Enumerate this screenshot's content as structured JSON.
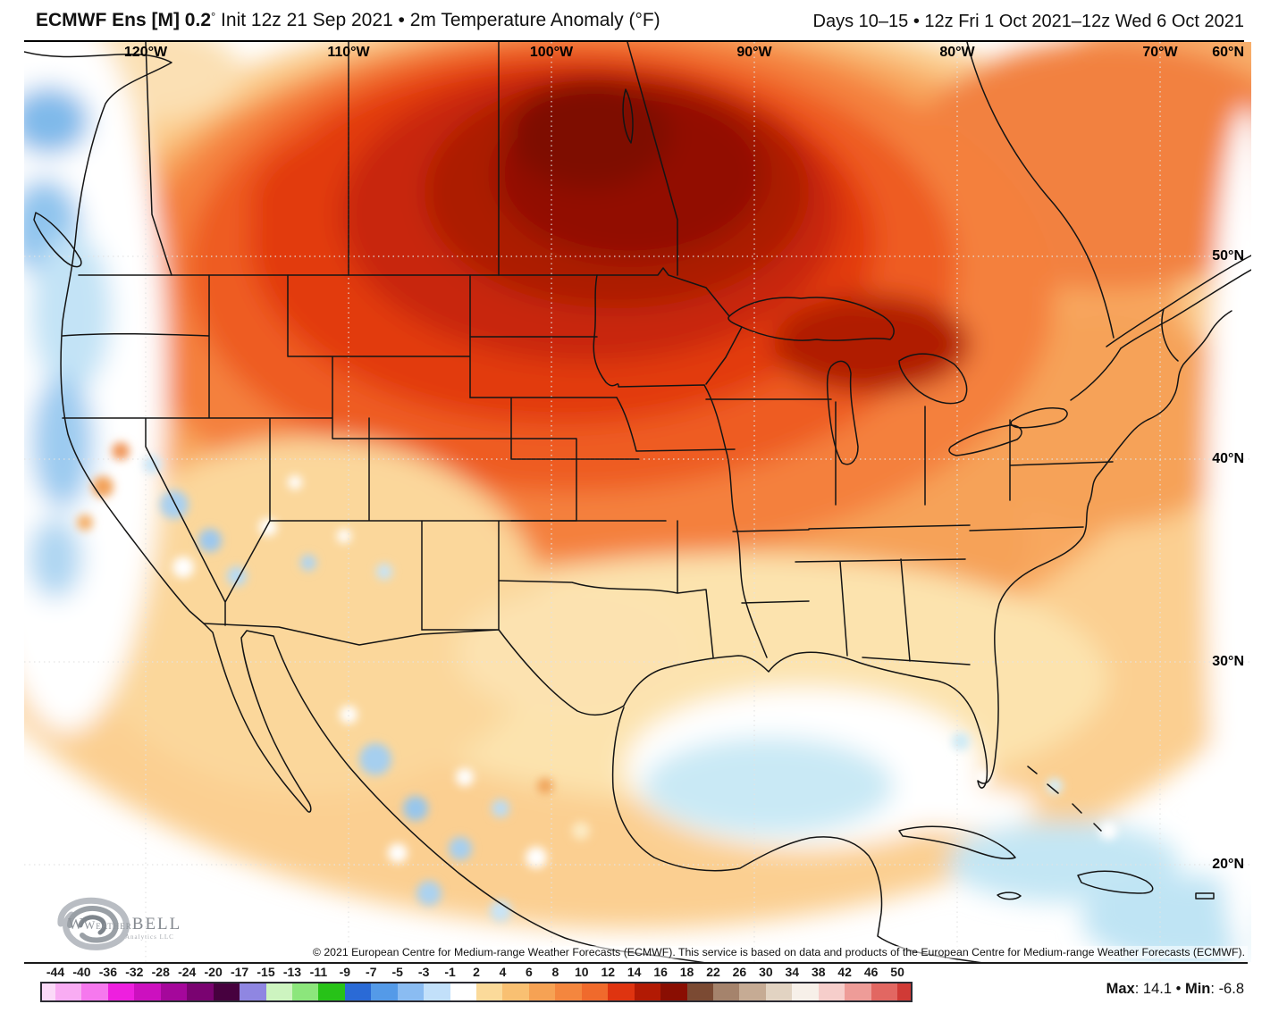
{
  "header": {
    "title_model": "ECMWF Ens [M] 0.2",
    "title_degree": "°",
    "title_desc": " Init 12z 21 Sep 2021 • 2m Temperature Anomaly (°F)",
    "valid_range": "Days 10–15 • 12z Fri 1 Oct 2021–12z Wed 6 Oct 2021"
  },
  "map": {
    "longitude_labels": [
      "120°W",
      "110°W",
      "100°W",
      "90°W",
      "80°W",
      "70°W"
    ],
    "latitude_labels": [
      "60°N",
      "50°N",
      "40°N",
      "30°N",
      "20°N"
    ],
    "copyright": "© 2021 European Centre for Medium-range Weather Forecasts (ECMWF). This service is based on data and products of the European Centre for Medium-range Weather Forecasts (ECMWF).",
    "logo": {
      "name_weather": "Weather",
      "name_bell": "BELL",
      "tagline": "Analytics LLC"
    }
  },
  "colorbar": {
    "tick_labels": [
      "-44",
      "-40",
      "-36",
      "-32",
      "-28",
      "-24",
      "-20",
      "-17",
      "-15",
      "-13",
      "-11",
      "-9",
      "-7",
      "-5",
      "-3",
      "-1",
      "2",
      "4",
      "6",
      "8",
      "10",
      "12",
      "14",
      "16",
      "18",
      "22",
      "26",
      "30",
      "34",
      "38",
      "42",
      "46",
      "50"
    ],
    "segment_colors": [
      "#FBD9F8",
      "#F9ACF3",
      "#F678EE",
      "#EE1FDF",
      "#CC10BF",
      "#A5079B",
      "#7A0371",
      "#47013F",
      "#8F86E2",
      "#CDF4C0",
      "#8CE67C",
      "#27C218",
      "#2A6AD6",
      "#549AE8",
      "#8ABCF2",
      "#C2E0FA",
      "#FFFFFF",
      "#FBDA9A",
      "#F9C072",
      "#F6A254",
      "#F4863E",
      "#F06A2C",
      "#DF3410",
      "#B21A04",
      "#8A0E02",
      "#7B4A33",
      "#A5836C",
      "#C6AB94",
      "#E2D3C2",
      "#F7F0E9",
      "#F6CECB",
      "#EE9C98",
      "#E26762",
      "#D03A36"
    ],
    "stats": {
      "max_label": "Max",
      "max_sep": ": ",
      "max_value": "14.1",
      "bullet": " • ",
      "min_label": "Min",
      "min_sep": ": ",
      "min_value": "-6.8"
    }
  }
}
